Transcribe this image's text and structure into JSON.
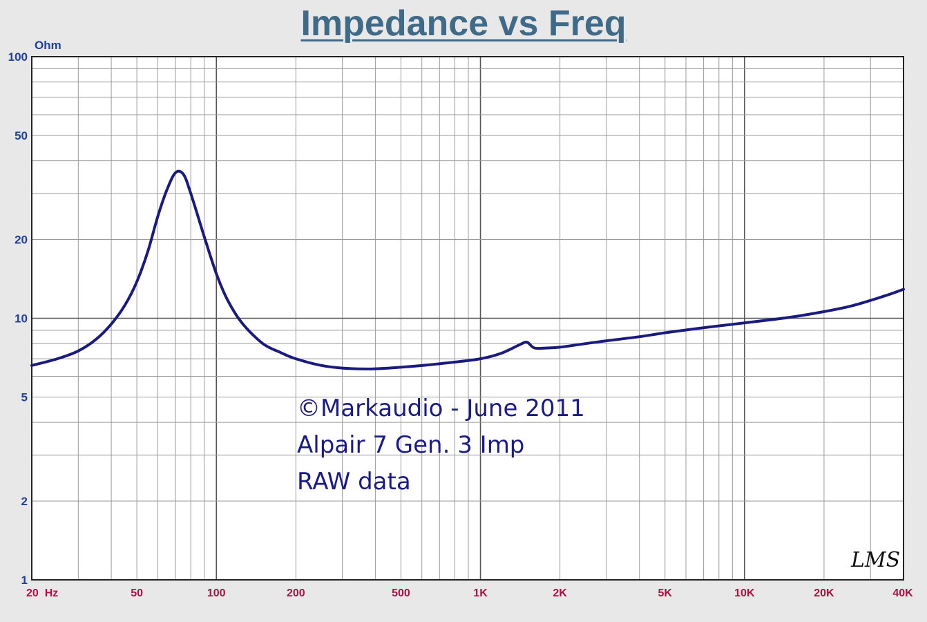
{
  "title": "Impedance vs Freq",
  "chart_data": {
    "type": "line",
    "title": "Impedance vs Freq",
    "ylabel": "Ohm",
    "xlabel": "",
    "x_scale": "log",
    "y_scale": "log",
    "xlim": [
      20,
      40000
    ],
    "ylim": [
      1,
      100
    ],
    "grid": true,
    "x_ticks": [
      {
        "value": 20,
        "label": "20  Hz"
      },
      {
        "value": 50,
        "label": "50"
      },
      {
        "value": 100,
        "label": "100"
      },
      {
        "value": 200,
        "label": "200"
      },
      {
        "value": 500,
        "label": "500"
      },
      {
        "value": 1000,
        "label": "1K"
      },
      {
        "value": 2000,
        "label": "2K"
      },
      {
        "value": 5000,
        "label": "5K"
      },
      {
        "value": 10000,
        "label": "10K"
      },
      {
        "value": 20000,
        "label": "20K"
      },
      {
        "value": 40000,
        "label": "40K"
      }
    ],
    "y_ticks": [
      {
        "value": 100,
        "label": "100"
      },
      {
        "value": 50,
        "label": "50"
      },
      {
        "value": 20,
        "label": "20"
      },
      {
        "value": 10,
        "label": "10"
      },
      {
        "value": 5,
        "label": "5"
      },
      {
        "value": 2,
        "label": "2"
      },
      {
        "value": 1,
        "label": "1"
      }
    ],
    "series": [
      {
        "color": "#1a1a80",
        "points": [
          [
            20,
            6.6
          ],
          [
            25,
            7.0
          ],
          [
            30,
            7.5
          ],
          [
            35,
            8.3
          ],
          [
            40,
            9.5
          ],
          [
            45,
            11.2
          ],
          [
            50,
            13.8
          ],
          [
            55,
            18.0
          ],
          [
            60,
            24.5
          ],
          [
            65,
            31.0
          ],
          [
            70,
            36.0
          ],
          [
            75,
            35.5
          ],
          [
            80,
            30.0
          ],
          [
            90,
            20.5
          ],
          [
            100,
            14.8
          ],
          [
            110,
            11.8
          ],
          [
            125,
            9.6
          ],
          [
            150,
            8.0
          ],
          [
            175,
            7.4
          ],
          [
            200,
            7.0
          ],
          [
            250,
            6.6
          ],
          [
            300,
            6.45
          ],
          [
            375,
            6.4
          ],
          [
            450,
            6.45
          ],
          [
            550,
            6.55
          ],
          [
            650,
            6.65
          ],
          [
            800,
            6.8
          ],
          [
            1000,
            7.0
          ],
          [
            1200,
            7.35
          ],
          [
            1400,
            7.9
          ],
          [
            1500,
            8.1
          ],
          [
            1600,
            7.7
          ],
          [
            1800,
            7.7
          ],
          [
            2000,
            7.75
          ],
          [
            2500,
            8.0
          ],
          [
            3000,
            8.2
          ],
          [
            4000,
            8.5
          ],
          [
            5000,
            8.8
          ],
          [
            7000,
            9.2
          ],
          [
            10000,
            9.6
          ],
          [
            15000,
            10.1
          ],
          [
            20000,
            10.6
          ],
          [
            25000,
            11.1
          ],
          [
            30000,
            11.7
          ],
          [
            35000,
            12.3
          ],
          [
            40000,
            12.9
          ]
        ]
      }
    ],
    "annotations": [
      "©Markaudio - June 2011",
      "Alpair 7 Gen. 3 Imp",
      "RAW data"
    ],
    "signature": "LMS"
  }
}
